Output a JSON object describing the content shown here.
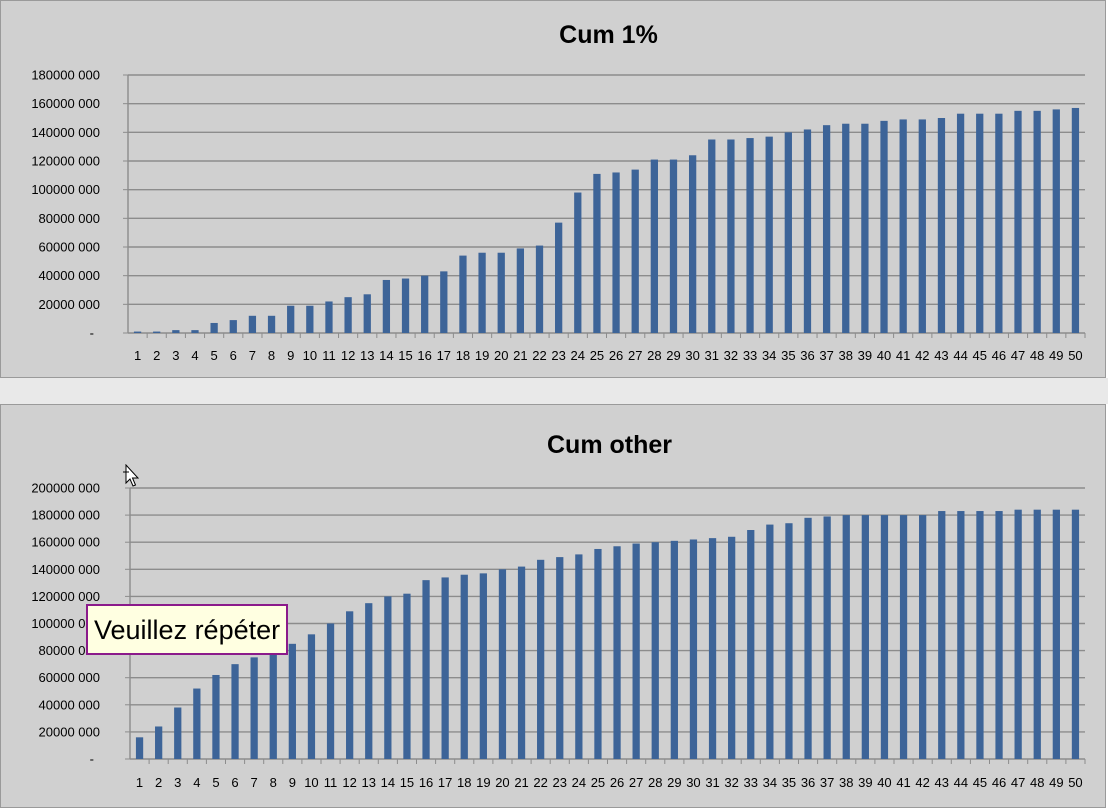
{
  "chart_data": [
    {
      "type": "bar",
      "title": "Cum 1%",
      "categories": [
        "1",
        "2",
        "3",
        "4",
        "5",
        "6",
        "7",
        "8",
        "9",
        "10",
        "11",
        "12",
        "13",
        "14",
        "15",
        "16",
        "17",
        "18",
        "19",
        "20",
        "21",
        "22",
        "23",
        "24",
        "25",
        "26",
        "27",
        "28",
        "29",
        "30",
        "31",
        "32",
        "33",
        "34",
        "35",
        "36",
        "37",
        "38",
        "39",
        "40",
        "41",
        "42",
        "43",
        "44",
        "45",
        "46",
        "47",
        "48",
        "49",
        "50"
      ],
      "values": [
        1000000,
        1000000,
        2000000,
        2000000,
        7000000,
        9000000,
        12000000,
        12000000,
        19000000,
        19000000,
        22000000,
        25000000,
        27000000,
        37000000,
        38000000,
        40000000,
        43000000,
        54000000,
        56000000,
        56000000,
        59000000,
        61000000,
        77000000,
        98000000,
        111000000,
        112000000,
        114000000,
        121000000,
        121000000,
        124000000,
        135000000,
        135000000,
        136000000,
        137000000,
        140000000,
        142000000,
        145000000,
        146000000,
        146000000,
        148000000,
        149000000,
        149000000,
        150000000,
        153000000,
        153000000,
        153000000,
        155000000,
        155000000,
        156000000,
        157000000
      ],
      "ylim": [
        0,
        180000000
      ],
      "yticks": [
        "-",
        "20000 000",
        "40000 000",
        "60000 000",
        "80000 000",
        "100000 000",
        "120000 000",
        "140000 000",
        "160000 000",
        "180000 000"
      ],
      "grid": true,
      "color": "#3d6498"
    },
    {
      "type": "bar",
      "title": "Cum other",
      "categories": [
        "1",
        "2",
        "3",
        "4",
        "5",
        "6",
        "7",
        "8",
        "9",
        "10",
        "11",
        "12",
        "13",
        "14",
        "15",
        "16",
        "17",
        "18",
        "19",
        "20",
        "21",
        "22",
        "23",
        "24",
        "25",
        "26",
        "27",
        "28",
        "29",
        "30",
        "31",
        "32",
        "33",
        "34",
        "35",
        "36",
        "37",
        "38",
        "39",
        "40",
        "41",
        "42",
        "43",
        "44",
        "45",
        "46",
        "47",
        "48",
        "49",
        "50"
      ],
      "values": [
        16000000,
        24000000,
        38000000,
        52000000,
        62000000,
        70000000,
        75000000,
        78000000,
        85000000,
        92000000,
        100000000,
        109000000,
        115000000,
        120000000,
        122000000,
        132000000,
        134000000,
        136000000,
        137000000,
        140000000,
        142000000,
        147000000,
        149000000,
        151000000,
        155000000,
        157000000,
        159000000,
        160000000,
        161000000,
        162000000,
        163000000,
        164000000,
        169000000,
        173000000,
        174000000,
        178000000,
        179000000,
        180000000,
        180000000,
        180000000,
        180000000,
        180000000,
        183000000,
        183000000,
        183000000,
        183000000,
        184000000,
        184000000,
        184000000,
        184000000
      ],
      "ylim": [
        0,
        200000000
      ],
      "yticks": [
        "-",
        "20000 000",
        "40000 000",
        "60000 000",
        "80000 000",
        "100000 000",
        "120000 000",
        "140000 000",
        "160000 000",
        "180000 000",
        "200000 000"
      ],
      "grid": true,
      "color": "#3d6498"
    }
  ],
  "tooltip": {
    "text": "Veuillez répéter"
  },
  "icons": {
    "cursor": "move-cursor-icon"
  }
}
